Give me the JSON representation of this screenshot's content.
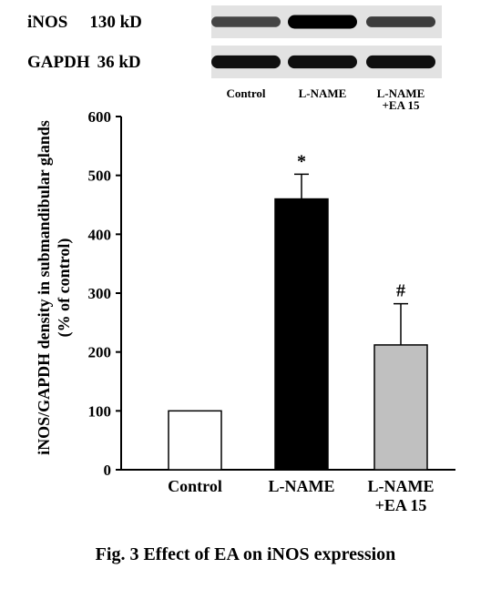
{
  "blot": {
    "rows": [
      {
        "protein": "iNOS",
        "size": "130 kD",
        "intensity": [
          0.55,
          1.0,
          0.6
        ]
      },
      {
        "protein": "GAPDH",
        "size": "36 kD",
        "intensity": [
          0.9,
          0.9,
          0.9
        ]
      }
    ],
    "lanes": [
      [
        "Control"
      ],
      [
        "L-NAME"
      ],
      [
        "L-NAME",
        "+EA 15"
      ]
    ]
  },
  "chart_data": {
    "type": "bar",
    "categories": [
      [
        "Control"
      ],
      [
        "L-NAME"
      ],
      [
        "L-NAME",
        "+EA 15"
      ]
    ],
    "values": [
      100,
      460,
      212
    ],
    "errors": [
      0,
      42,
      70
    ],
    "significance": [
      "",
      "*",
      "#"
    ],
    "bar_colors": [
      "#ffffff",
      "#000000",
      "#c0c0c0"
    ],
    "ylabel_lines": [
      "iNOS/GAPDH density in submandibular glands",
      "(% of control)"
    ],
    "ylim": [
      0,
      600
    ],
    "yticks": [
      0,
      100,
      200,
      300,
      400,
      500,
      600
    ],
    "grid": false
  },
  "caption": "Fig. 3 Effect of EA on iNOS expression"
}
